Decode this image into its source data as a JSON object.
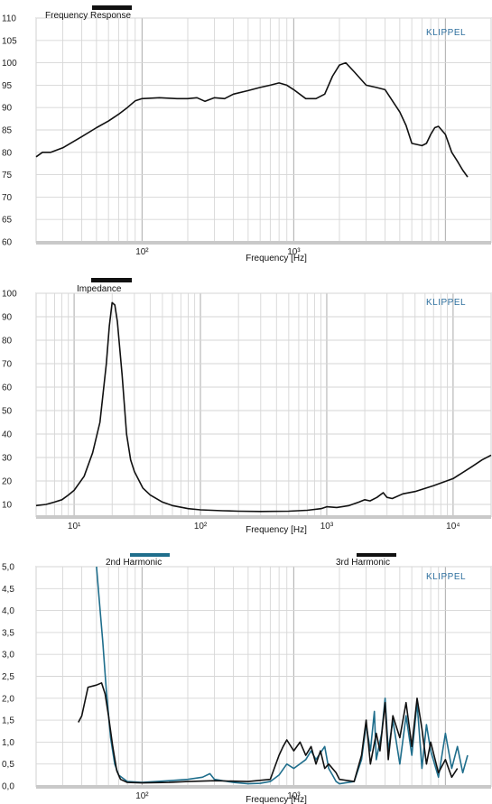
{
  "brand": "KLIPPEL",
  "chart_data": [
    {
      "type": "line",
      "title": "Frequency Response",
      "xlabel": "Frequency  [Hz]",
      "ylabel": "",
      "xscale": "log",
      "xlim": [
        20,
        20000
      ],
      "ylim": [
        60,
        110
      ],
      "yticks": [
        60,
        65,
        70,
        75,
        80,
        85,
        90,
        95,
        100,
        105,
        110
      ],
      "ytick_labels": [
        "60",
        "65",
        "70",
        "75",
        "80",
        "85",
        "90",
        "95",
        "100",
        "105",
        "110"
      ],
      "xtick_values": [
        100,
        1000
      ],
      "xtick_labels": [
        "10²",
        "10³"
      ],
      "grid": true,
      "legend_color": "#111111",
      "series": [
        {
          "color": "#111111",
          "points": [
            [
              20,
              79
            ],
            [
              22,
              80
            ],
            [
              25,
              80
            ],
            [
              30,
              81
            ],
            [
              40,
              83.5
            ],
            [
              50,
              85.5
            ],
            [
              60,
              87
            ],
            [
              70,
              88.5
            ],
            [
              80,
              90
            ],
            [
              90,
              91.5
            ],
            [
              100,
              92
            ],
            [
              130,
              92.2
            ],
            [
              170,
              92
            ],
            [
              200,
              92
            ],
            [
              230,
              92.2
            ],
            [
              260,
              91.4
            ],
            [
              300,
              92.2
            ],
            [
              350,
              92
            ],
            [
              400,
              93
            ],
            [
              500,
              93.8
            ],
            [
              600,
              94.5
            ],
            [
              700,
              95
            ],
            [
              800,
              95.5
            ],
            [
              900,
              95
            ],
            [
              1000,
              94
            ],
            [
              1200,
              92
            ],
            [
              1400,
              92
            ],
            [
              1600,
              93
            ],
            [
              1800,
              97
            ],
            [
              2000,
              99.5
            ],
            [
              2200,
              100
            ],
            [
              2500,
              98
            ],
            [
              3000,
              95
            ],
            [
              3500,
              94.5
            ],
            [
              4000,
              94
            ],
            [
              5000,
              89
            ],
            [
              5500,
              86
            ],
            [
              6000,
              82
            ],
            [
              7000,
              81.5
            ],
            [
              7500,
              82
            ],
            [
              8000,
              84
            ],
            [
              8500,
              85.5
            ],
            [
              9000,
              85.8
            ],
            [
              10000,
              84
            ],
            [
              11000,
              80
            ],
            [
              12000,
              78
            ],
            [
              13000,
              76
            ],
            [
              14000,
              74.5
            ]
          ]
        }
      ]
    },
    {
      "type": "line",
      "title": "Impedance",
      "xlabel": "Frequency  [Hz]",
      "ylabel": "",
      "xscale": "log",
      "xlim": [
        5,
        20000
      ],
      "ylim": [
        5,
        100
      ],
      "yticks": [
        10,
        20,
        30,
        40,
        50,
        60,
        70,
        80,
        90,
        100
      ],
      "ytick_labels": [
        "10",
        "20",
        "30",
        "40",
        "50",
        "60",
        "70",
        "80",
        "90",
        "100"
      ],
      "xtick_values": [
        10,
        100,
        1000,
        10000
      ],
      "xtick_labels": [
        "10¹",
        "10²",
        "10³",
        "10⁴"
      ],
      "grid": true,
      "legend_color": "#111111",
      "series": [
        {
          "color": "#111111",
          "points": [
            [
              5,
              9.5
            ],
            [
              6,
              10
            ],
            [
              7,
              11
            ],
            [
              8,
              12
            ],
            [
              9,
              14
            ],
            [
              10,
              16
            ],
            [
              12,
              22
            ],
            [
              14,
              32
            ],
            [
              16,
              45
            ],
            [
              18,
              70
            ],
            [
              19,
              86
            ],
            [
              20,
              96
            ],
            [
              21,
              95
            ],
            [
              22,
              88
            ],
            [
              24,
              65
            ],
            [
              26,
              40
            ],
            [
              28,
              29
            ],
            [
              30,
              24
            ],
            [
              35,
              17
            ],
            [
              40,
              14
            ],
            [
              50,
              11
            ],
            [
              60,
              9.5
            ],
            [
              80,
              8.2
            ],
            [
              100,
              7.7
            ],
            [
              150,
              7.3
            ],
            [
              200,
              7.1
            ],
            [
              300,
              7
            ],
            [
              500,
              7.1
            ],
            [
              700,
              7.5
            ],
            [
              900,
              8.2
            ],
            [
              1000,
              9
            ],
            [
              1200,
              8.7
            ],
            [
              1500,
              9.5
            ],
            [
              1800,
              11
            ],
            [
              2000,
              12
            ],
            [
              2200,
              11.5
            ],
            [
              2500,
              13
            ],
            [
              2800,
              15
            ],
            [
              3000,
              13
            ],
            [
              3300,
              12.5
            ],
            [
              4000,
              14.5
            ],
            [
              5000,
              15.5
            ],
            [
              7000,
              18
            ],
            [
              10000,
              21
            ],
            [
              14000,
              26
            ],
            [
              17000,
              29
            ],
            [
              20000,
              31
            ]
          ]
        }
      ]
    },
    {
      "type": "line",
      "title": "",
      "xlabel": "Frequency  [Hz]",
      "ylabel": "",
      "xscale": "log",
      "xlim": [
        20,
        20000
      ],
      "ylim": [
        0,
        5
      ],
      "yticks": [
        0,
        0.5,
        1,
        1.5,
        2,
        2.5,
        3,
        3.5,
        4,
        4.5,
        5
      ],
      "ytick_labels": [
        "0,0",
        "0,5",
        "1,0",
        "1,5",
        "2,0",
        "2,5",
        "3,0",
        "3,5",
        "4,0",
        "4,5",
        "5,0"
      ],
      "xtick_values": [
        100,
        1000
      ],
      "xtick_labels": [
        "10²",
        "10³"
      ],
      "grid": true,
      "series": [
        {
          "name": "2nd Harmonic",
          "color": "#1f6e8c",
          "points": [
            [
              50,
              5
            ],
            [
              52,
              4.3
            ],
            [
              55,
              3.3
            ],
            [
              58,
              2.2
            ],
            [
              62,
              1.1
            ],
            [
              66,
              0.5
            ],
            [
              70,
              0.25
            ],
            [
              80,
              0.1
            ],
            [
              100,
              0.08
            ],
            [
              150,
              0.12
            ],
            [
              200,
              0.15
            ],
            [
              250,
              0.2
            ],
            [
              280,
              0.28
            ],
            [
              300,
              0.15
            ],
            [
              400,
              0.08
            ],
            [
              500,
              0.05
            ],
            [
              600,
              0.06
            ],
            [
              700,
              0.1
            ],
            [
              800,
              0.25
            ],
            [
              900,
              0.5
            ],
            [
              1000,
              0.4
            ],
            [
              1200,
              0.6
            ],
            [
              1300,
              0.8
            ],
            [
              1400,
              0.6
            ],
            [
              1600,
              0.9
            ],
            [
              1700,
              0.4
            ],
            [
              1800,
              0.25
            ],
            [
              1900,
              0.1
            ],
            [
              2000,
              0.05
            ],
            [
              2500,
              0.1
            ],
            [
              2800,
              0.6
            ],
            [
              3000,
              1.4
            ],
            [
              3200,
              0.8
            ],
            [
              3400,
              1.7
            ],
            [
              3500,
              0.6
            ],
            [
              3800,
              1.2
            ],
            [
              4000,
              2
            ],
            [
              4200,
              0.8
            ],
            [
              4500,
              1.5
            ],
            [
              5000,
              0.5
            ],
            [
              5500,
              1.6
            ],
            [
              6000,
              0.7
            ],
            [
              6500,
              1.9
            ],
            [
              7000,
              0.4
            ],
            [
              7500,
              1.4
            ],
            [
              8000,
              0.8
            ],
            [
              9000,
              0.2
            ],
            [
              10000,
              1.2
            ],
            [
              11000,
              0.4
            ],
            [
              12000,
              0.9
            ],
            [
              13000,
              0.3
            ],
            [
              14000,
              0.7
            ]
          ]
        },
        {
          "name": "3rd Harmonic",
          "color": "#111111",
          "points": [
            [
              38,
              1.45
            ],
            [
              40,
              1.6
            ],
            [
              44,
              2.25
            ],
            [
              50,
              2.3
            ],
            [
              54,
              2.35
            ],
            [
              57,
              2.1
            ],
            [
              60,
              1.6
            ],
            [
              64,
              0.9
            ],
            [
              68,
              0.35
            ],
            [
              72,
              0.15
            ],
            [
              80,
              0.08
            ],
            [
              100,
              0.07
            ],
            [
              150,
              0.08
            ],
            [
              200,
              0.1
            ],
            [
              300,
              0.12
            ],
            [
              500,
              0.1
            ],
            [
              700,
              0.15
            ],
            [
              800,
              0.7
            ],
            [
              850,
              0.9
            ],
            [
              900,
              1.05
            ],
            [
              1000,
              0.8
            ],
            [
              1100,
              1
            ],
            [
              1200,
              0.7
            ],
            [
              1300,
              0.9
            ],
            [
              1400,
              0.5
            ],
            [
              1500,
              0.8
            ],
            [
              1600,
              0.4
            ],
            [
              1700,
              0.5
            ],
            [
              1900,
              0.3
            ],
            [
              2000,
              0.15
            ],
            [
              2500,
              0.1
            ],
            [
              2800,
              0.7
            ],
            [
              3000,
              1.5
            ],
            [
              3200,
              0.5
            ],
            [
              3500,
              1.2
            ],
            [
              3700,
              0.8
            ],
            [
              4000,
              1.9
            ],
            [
              4200,
              0.6
            ],
            [
              4500,
              1.6
            ],
            [
              5000,
              1.1
            ],
            [
              5500,
              1.9
            ],
            [
              6000,
              0.9
            ],
            [
              6500,
              2
            ],
            [
              7000,
              1.3
            ],
            [
              7500,
              0.5
            ],
            [
              8000,
              1
            ],
            [
              9000,
              0.3
            ],
            [
              10000,
              0.6
            ],
            [
              11000,
              0.2
            ],
            [
              12000,
              0.4
            ]
          ]
        }
      ]
    }
  ]
}
